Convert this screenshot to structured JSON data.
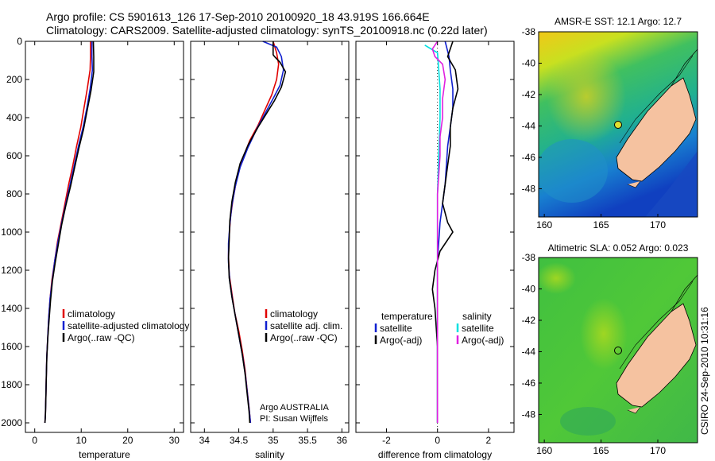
{
  "header": {
    "line1": "Argo profile: CS 5901613_126 17-Sep-2010 20100920_18 43.919S 166.664E",
    "line2": "Climatology: CARS2009. Satellite-adjusted climatology: synTS_20100918.nc (0.22d later)"
  },
  "colors": {
    "climatology": "#e00000",
    "satellite": "#1020d0",
    "argo": "#000000",
    "satellite_diff": "#00e0e0",
    "argo_diff": "#e020e0"
  },
  "chart_data": [
    {
      "id": "temperature",
      "type": "line",
      "xlabel": "temperature",
      "xlim": [
        -2,
        32
      ],
      "xticks": [
        0,
        10,
        20,
        30
      ],
      "ylim": [
        2050,
        0
      ],
      "yticks": [
        0,
        200,
        400,
        600,
        800,
        1000,
        1200,
        1400,
        1600,
        1800,
        2000
      ],
      "legend": [
        "climatology",
        "satellite-adjusted climatology",
        "Argo(..raw -QC)"
      ],
      "series": [
        {
          "name": "climatology",
          "color_key": "climatology",
          "points": [
            [
              12.0,
              0
            ],
            [
              12.0,
              80
            ],
            [
              11.9,
              150
            ],
            [
              11.3,
              250
            ],
            [
              10.6,
              350
            ],
            [
              9.9,
              450
            ],
            [
              9.0,
              550
            ],
            [
              8.2,
              650
            ],
            [
              7.3,
              750
            ],
            [
              6.5,
              850
            ],
            [
              5.7,
              950
            ],
            [
              4.9,
              1050
            ],
            [
              4.3,
              1150
            ],
            [
              3.7,
              1250
            ],
            [
              3.3,
              1350
            ],
            [
              3.0,
              1450
            ],
            [
              2.8,
              1550
            ],
            [
              2.6,
              1650
            ],
            [
              2.5,
              1750
            ],
            [
              2.4,
              1850
            ],
            [
              2.3,
              1950
            ],
            [
              2.2,
              2000
            ]
          ]
        },
        {
          "name": "satellite-adjusted climatology",
          "color_key": "satellite",
          "points": [
            [
              12.3,
              0
            ],
            [
              12.3,
              80
            ],
            [
              12.4,
              150
            ],
            [
              11.9,
              250
            ],
            [
              11.2,
              350
            ],
            [
              10.4,
              450
            ],
            [
              9.4,
              550
            ],
            [
              8.5,
              650
            ],
            [
              7.6,
              750
            ],
            [
              6.7,
              850
            ],
            [
              5.8,
              950
            ],
            [
              5.0,
              1050
            ],
            [
              4.3,
              1150
            ],
            [
              3.8,
              1250
            ],
            [
              3.3,
              1350
            ],
            [
              3.0,
              1450
            ],
            [
              2.8,
              1550
            ],
            [
              2.6,
              1650
            ],
            [
              2.5,
              1750
            ],
            [
              2.4,
              1850
            ],
            [
              2.3,
              1950
            ],
            [
              2.2,
              2000
            ]
          ]
        },
        {
          "name": "Argo(..raw -QC)",
          "color_key": "argo",
          "points": [
            [
              12.6,
              0
            ],
            [
              12.7,
              80
            ],
            [
              12.7,
              160
            ],
            [
              12.1,
              260
            ],
            [
              11.3,
              360
            ],
            [
              10.5,
              460
            ],
            [
              9.5,
              560
            ],
            [
              8.6,
              660
            ],
            [
              7.7,
              760
            ],
            [
              6.7,
              860
            ],
            [
              5.8,
              960
            ],
            [
              5.1,
              1060
            ],
            [
              4.4,
              1160
            ],
            [
              3.8,
              1260
            ],
            [
              3.4,
              1360
            ],
            [
              3.1,
              1460
            ],
            [
              2.8,
              1560
            ],
            [
              2.6,
              1660
            ],
            [
              2.5,
              1760
            ],
            [
              2.4,
              1860
            ],
            [
              2.3,
              1960
            ],
            [
              2.2,
              2000
            ]
          ]
        }
      ]
    },
    {
      "id": "salinity",
      "type": "line",
      "xlabel": "salinity",
      "xlim": [
        33.8,
        36.1
      ],
      "xticks": [
        34,
        34.5,
        35,
        35.5,
        36
      ],
      "ylim": [
        2050,
        0
      ],
      "legend": [
        "climatology",
        "satellite adj. clim.",
        "Argo(..raw -QC)"
      ],
      "annotation": [
        "Argo AUSTRALIA",
        "PI: Susan Wijffels"
      ],
      "series": [
        {
          "name": "climatology",
          "color_key": "climatology",
          "points": [
            [
              35.0,
              0
            ],
            [
              35.05,
              60
            ],
            [
              35.08,
              120
            ],
            [
              35.05,
              200
            ],
            [
              34.98,
              280
            ],
            [
              34.88,
              360
            ],
            [
              34.78,
              440
            ],
            [
              34.66,
              520
            ],
            [
              34.55,
              620
            ],
            [
              34.47,
              720
            ],
            [
              34.42,
              820
            ],
            [
              34.38,
              920
            ],
            [
              34.36,
              1020
            ],
            [
              34.35,
              1120
            ],
            [
              34.36,
              1220
            ],
            [
              34.4,
              1320
            ],
            [
              34.44,
              1420
            ],
            [
              34.5,
              1520
            ],
            [
              34.55,
              1620
            ],
            [
              34.59,
              1720
            ],
            [
              34.62,
              1820
            ],
            [
              34.65,
              1920
            ],
            [
              34.67,
              2000
            ]
          ]
        },
        {
          "name": "satellite adj. clim.",
          "color_key": "satellite",
          "points": [
            [
              34.85,
              0
            ],
            [
              35.05,
              30
            ],
            [
              35.12,
              80
            ],
            [
              35.15,
              150
            ],
            [
              35.1,
              230
            ],
            [
              35.0,
              300
            ],
            [
              34.88,
              380
            ],
            [
              34.76,
              460
            ],
            [
              34.63,
              560
            ],
            [
              34.52,
              660
            ],
            [
              34.45,
              760
            ],
            [
              34.4,
              860
            ],
            [
              34.37,
              960
            ],
            [
              34.35,
              1060
            ],
            [
              34.35,
              1160
            ],
            [
              34.37,
              1260
            ],
            [
              34.41,
              1360
            ],
            [
              34.46,
              1460
            ],
            [
              34.51,
              1560
            ],
            [
              34.56,
              1660
            ],
            [
              34.6,
              1760
            ],
            [
              34.63,
              1860
            ],
            [
              34.66,
              1960
            ],
            [
              34.67,
              2000
            ]
          ]
        },
        {
          "name": "Argo(..raw -QC)",
          "color_key": "argo",
          "points": [
            [
              35.0,
              0
            ],
            [
              35.0,
              70
            ],
            [
              35.02,
              80
            ],
            [
              35.1,
              110
            ],
            [
              35.18,
              160
            ],
            [
              35.12,
              240
            ],
            [
              35.02,
              310
            ],
            [
              34.9,
              380
            ],
            [
              34.78,
              450
            ],
            [
              34.64,
              540
            ],
            [
              34.52,
              640
            ],
            [
              34.45,
              740
            ],
            [
              34.4,
              840
            ],
            [
              34.37,
              940
            ],
            [
              34.36,
              1040
            ],
            [
              34.35,
              1140
            ],
            [
              34.36,
              1240
            ],
            [
              34.4,
              1340
            ],
            [
              34.45,
              1440
            ],
            [
              34.5,
              1540
            ],
            [
              34.55,
              1640
            ],
            [
              34.59,
              1740
            ],
            [
              34.62,
              1840
            ],
            [
              34.65,
              1940
            ],
            [
              34.66,
              2000
            ]
          ]
        }
      ]
    },
    {
      "id": "difference",
      "type": "line",
      "xlabel": "difference from climatology",
      "xlim": [
        -3.2,
        3.0
      ],
      "xticks": [
        -2,
        0,
        2
      ],
      "ylim": [
        2050,
        0
      ],
      "legend_columns": [
        {
          "title": "temperature",
          "items": [
            "satellite",
            "Argo(-adj)"
          ]
        },
        {
          "title": "salinity",
          "items": [
            "satellite",
            "Argo(-adj)"
          ]
        }
      ],
      "series": [
        {
          "name": "temperature satellite",
          "color_key": "satellite",
          "points": [
            [
              0.3,
              0
            ],
            [
              0.45,
              80
            ],
            [
              0.5,
              150
            ],
            [
              0.6,
              250
            ],
            [
              0.6,
              350
            ],
            [
              0.5,
              450
            ],
            [
              0.4,
              550
            ],
            [
              0.35,
              650
            ],
            [
              0.3,
              750
            ],
            [
              0.2,
              850
            ],
            [
              0.1,
              950
            ],
            [
              0.05,
              1050
            ],
            [
              0.0,
              1150
            ],
            [
              0.0,
              1300
            ],
            [
              0.0,
              1500
            ],
            [
              0.0,
              1700
            ],
            [
              0.0,
              1900
            ],
            [
              0.0,
              2000
            ]
          ]
        },
        {
          "name": "temperature Argo(-adj)",
          "color_key": "argo",
          "points": [
            [
              0.6,
              0
            ],
            [
              0.4,
              80
            ],
            [
              0.7,
              150
            ],
            [
              0.8,
              250
            ],
            [
              0.6,
              350
            ],
            [
              0.5,
              450
            ],
            [
              0.5,
              550
            ],
            [
              0.4,
              650
            ],
            [
              0.3,
              750
            ],
            [
              0.2,
              850
            ],
            [
              0.4,
              950
            ],
            [
              0.6,
              1000
            ],
            [
              0.1,
              1100
            ],
            [
              -0.1,
              1200
            ],
            [
              -0.2,
              1300
            ],
            [
              -0.1,
              1400
            ],
            [
              0.0,
              1600
            ],
            [
              0.0,
              1800
            ],
            [
              0.0,
              2000
            ]
          ]
        },
        {
          "name": "salinity satellite",
          "color_key": "satellite_diff",
          "points": [
            [
              -0.5,
              20
            ],
            [
              0.0,
              60
            ],
            [
              0.05,
              150
            ],
            [
              0.1,
              250
            ],
            [
              0.1,
              400
            ],
            [
              0.05,
              600
            ],
            [
              0.0,
              800
            ],
            [
              0.0,
              1000
            ],
            [
              0.0,
              1200
            ],
            [
              0.0,
              1400
            ],
            [
              0.0,
              1600
            ],
            [
              0.0,
              1800
            ],
            [
              0.0,
              2000
            ]
          ]
        },
        {
          "name": "salinity Argo(-adj)",
          "color_key": "argo_diff",
          "points": [
            [
              0.0,
              0
            ],
            [
              -0.2,
              40
            ],
            [
              -0.1,
              80
            ],
            [
              0.2,
              120
            ],
            [
              0.3,
              200
            ],
            [
              0.2,
              300
            ],
            [
              0.2,
              400
            ],
            [
              0.1,
              500
            ],
            [
              0.1,
              600
            ],
            [
              0.0,
              800
            ],
            [
              0.0,
              1000
            ],
            [
              0.0,
              1200
            ],
            [
              0.0,
              1400
            ],
            [
              0.0,
              1600
            ],
            [
              0.0,
              1800
            ],
            [
              0.0,
              2000
            ]
          ]
        }
      ]
    },
    {
      "id": "sst_map",
      "type": "heatmap",
      "title": "AMSR-E SST: 12.1 Argo: 12.7",
      "xticks": [
        160,
        165,
        170
      ],
      "yticks": [
        -38,
        -40,
        -42,
        -44,
        -46,
        -48
      ],
      "xlim": [
        159.5,
        173.5
      ],
      "ylim": [
        -49.8,
        -38
      ],
      "profile_location": [
        166.664,
        -43.919
      ]
    },
    {
      "id": "sla_map",
      "type": "heatmap",
      "title": "Altimetric SLA: 0.052 Argo: 0.023",
      "xticks": [
        160,
        165,
        170
      ],
      "yticks": [
        -38,
        -40,
        -42,
        -44,
        -46,
        -48
      ],
      "xlim": [
        159.5,
        173.5
      ],
      "ylim": [
        -49.8,
        -38
      ],
      "profile_location": [
        166.664,
        -43.919
      ]
    }
  ],
  "footer": {
    "stamp": "CSIRO 24-Sep-2010 10:31:16"
  }
}
